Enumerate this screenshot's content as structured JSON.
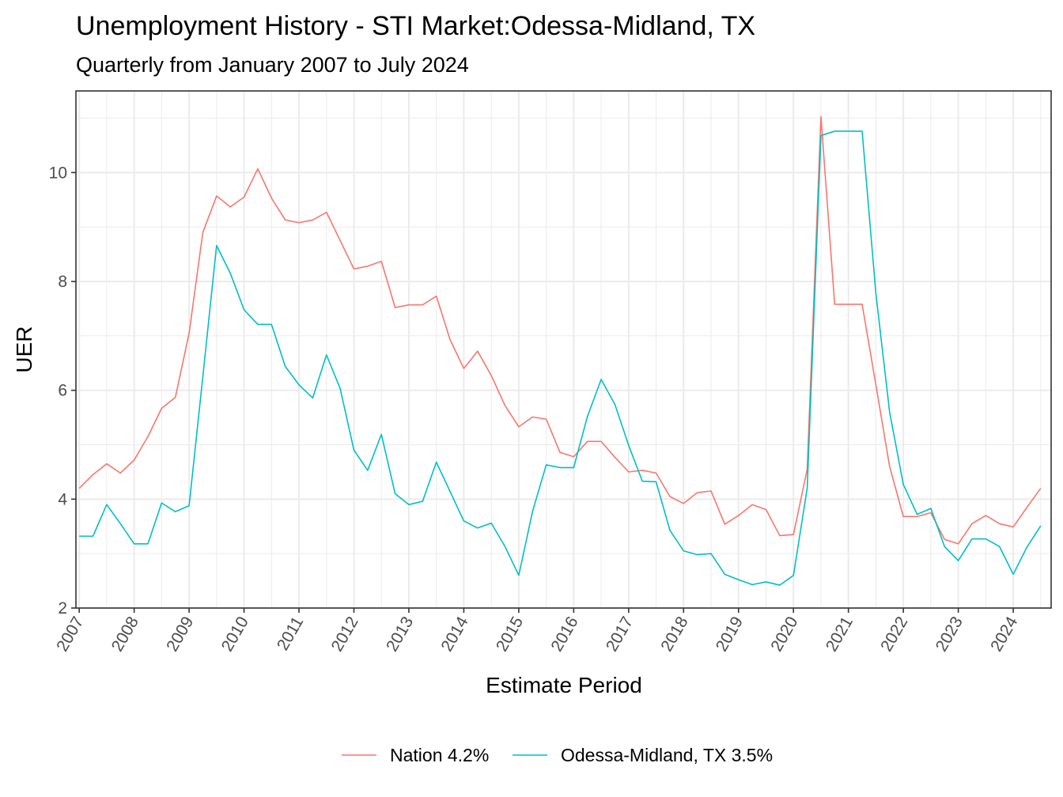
{
  "chart_data": {
    "type": "line",
    "title": "Unemployment History - STI Market:Odessa-Midland, TX",
    "subtitle": "Quarterly from January 2007 to July 2024",
    "xlabel": "Estimate Period",
    "ylabel": "UER",
    "xlim": [
      2006.94,
      2024.69
    ],
    "ylim": [
      2,
      11.5
    ],
    "x_ticks": [
      "2007",
      "2008",
      "2009",
      "2010",
      "2011",
      "2012",
      "2013",
      "2014",
      "2015",
      "2016",
      "2017",
      "2018",
      "2019",
      "2020",
      "2021",
      "2022",
      "2023",
      "2024"
    ],
    "y_ticks": [
      "2",
      "4",
      "6",
      "8",
      "10"
    ],
    "grid": true,
    "legend_position": "bottom",
    "x": [
      2007.0,
      2007.25,
      2007.5,
      2007.75,
      2008.0,
      2008.25,
      2008.5,
      2008.75,
      2009.0,
      2009.25,
      2009.5,
      2009.75,
      2010.0,
      2010.25,
      2010.5,
      2010.75,
      2011.0,
      2011.25,
      2011.5,
      2011.75,
      2012.0,
      2012.25,
      2012.5,
      2012.75,
      2013.0,
      2013.25,
      2013.5,
      2013.75,
      2014.0,
      2014.25,
      2014.5,
      2014.75,
      2015.0,
      2015.25,
      2015.5,
      2015.75,
      2016.0,
      2016.25,
      2016.5,
      2016.75,
      2017.0,
      2017.25,
      2017.5,
      2017.75,
      2018.0,
      2018.25,
      2018.5,
      2018.75,
      2019.0,
      2019.25,
      2019.5,
      2019.75,
      2020.0,
      2020.25,
      2020.5,
      2020.75,
      2021.0,
      2021.25,
      2021.5,
      2021.75,
      2022.0,
      2022.25,
      2022.5,
      2022.75,
      2023.0,
      2023.25,
      2023.5,
      2023.75,
      2024.0,
      2024.25,
      2024.5
    ],
    "series": [
      {
        "name": "Nation 4.2%",
        "color": "#F8766D",
        "values": [
          4.2,
          4.45,
          4.65,
          4.48,
          4.72,
          5.15,
          5.67,
          5.87,
          7.05,
          8.9,
          9.57,
          9.37,
          9.55,
          10.07,
          9.53,
          9.13,
          9.08,
          9.13,
          9.27,
          8.75,
          8.23,
          8.28,
          8.37,
          7.52,
          7.57,
          7.57,
          7.73,
          6.93,
          6.4,
          6.72,
          6.27,
          5.72,
          5.33,
          5.51,
          5.47,
          4.86,
          4.78,
          5.06,
          5.06,
          4.77,
          4.5,
          4.53,
          4.48,
          4.05,
          3.92,
          4.12,
          4.15,
          3.54,
          3.7,
          3.9,
          3.81,
          3.33,
          3.35,
          4.55,
          11.03,
          7.58,
          7.58,
          7.58,
          6.1,
          4.6,
          3.68,
          3.68,
          3.75,
          3.26,
          3.18,
          3.55,
          3.7,
          3.55,
          3.49,
          3.85,
          4.2
        ]
      },
      {
        "name": "Odessa-Midland, TX 3.5%",
        "color": "#00BFC4",
        "values": [
          3.32,
          3.32,
          3.9,
          3.55,
          3.18,
          3.18,
          3.93,
          3.77,
          3.88,
          6.25,
          8.66,
          8.15,
          7.48,
          7.21,
          7.21,
          6.44,
          6.1,
          5.86,
          6.65,
          6.03,
          4.9,
          4.53,
          5.19,
          4.1,
          3.9,
          3.96,
          4.68,
          4.14,
          3.6,
          3.47,
          3.56,
          3.13,
          2.6,
          3.77,
          4.63,
          4.58,
          4.58,
          5.52,
          6.2,
          5.74,
          4.99,
          4.33,
          4.32,
          3.43,
          3.05,
          2.98,
          3.0,
          2.62,
          2.52,
          2.43,
          2.48,
          2.42,
          2.6,
          4.2,
          10.68,
          10.76,
          10.76,
          10.76,
          7.78,
          5.6,
          4.27,
          3.72,
          3.83,
          3.13,
          2.87,
          3.27,
          3.27,
          3.13,
          2.62,
          3.12,
          3.51
        ]
      }
    ]
  }
}
